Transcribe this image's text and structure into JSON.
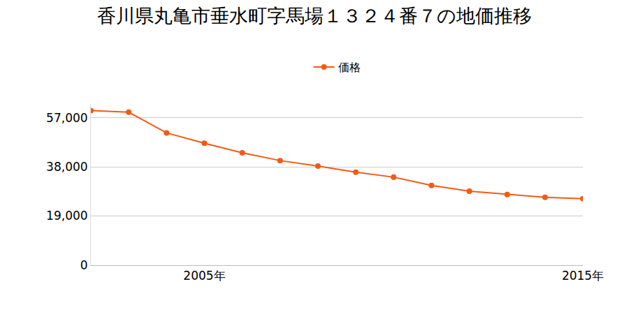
{
  "chart_data": {
    "type": "line",
    "title": "香川県丸亀市垂水町字馬場１３２４番７の地価推移",
    "x": [
      2002,
      2003,
      2004,
      2005,
      2006,
      2007,
      2008,
      2009,
      2010,
      2011,
      2012,
      2013,
      2014,
      2015
    ],
    "series": [
      {
        "name": "価格",
        "color": "#f55a14",
        "values": [
          59700,
          59100,
          51100,
          47100,
          43400,
          40400,
          38300,
          35900,
          34000,
          30800,
          28600,
          27300,
          26200,
          25700
        ]
      }
    ],
    "xlim": [
      2002,
      2015
    ],
    "xticks": [
      {
        "value": 2005,
        "label": "2005年"
      },
      {
        "value": 2015,
        "label": "2015年"
      }
    ],
    "ylim": [
      0,
      62000
    ],
    "yticks": [
      0,
      {
        "value": 19000,
        "label": "19,000"
      },
      {
        "value": 38000,
        "label": "38,000"
      },
      {
        "value": 57000,
        "label": "57,000"
      }
    ],
    "grid": true,
    "legend": "top",
    "marker": "circle"
  }
}
